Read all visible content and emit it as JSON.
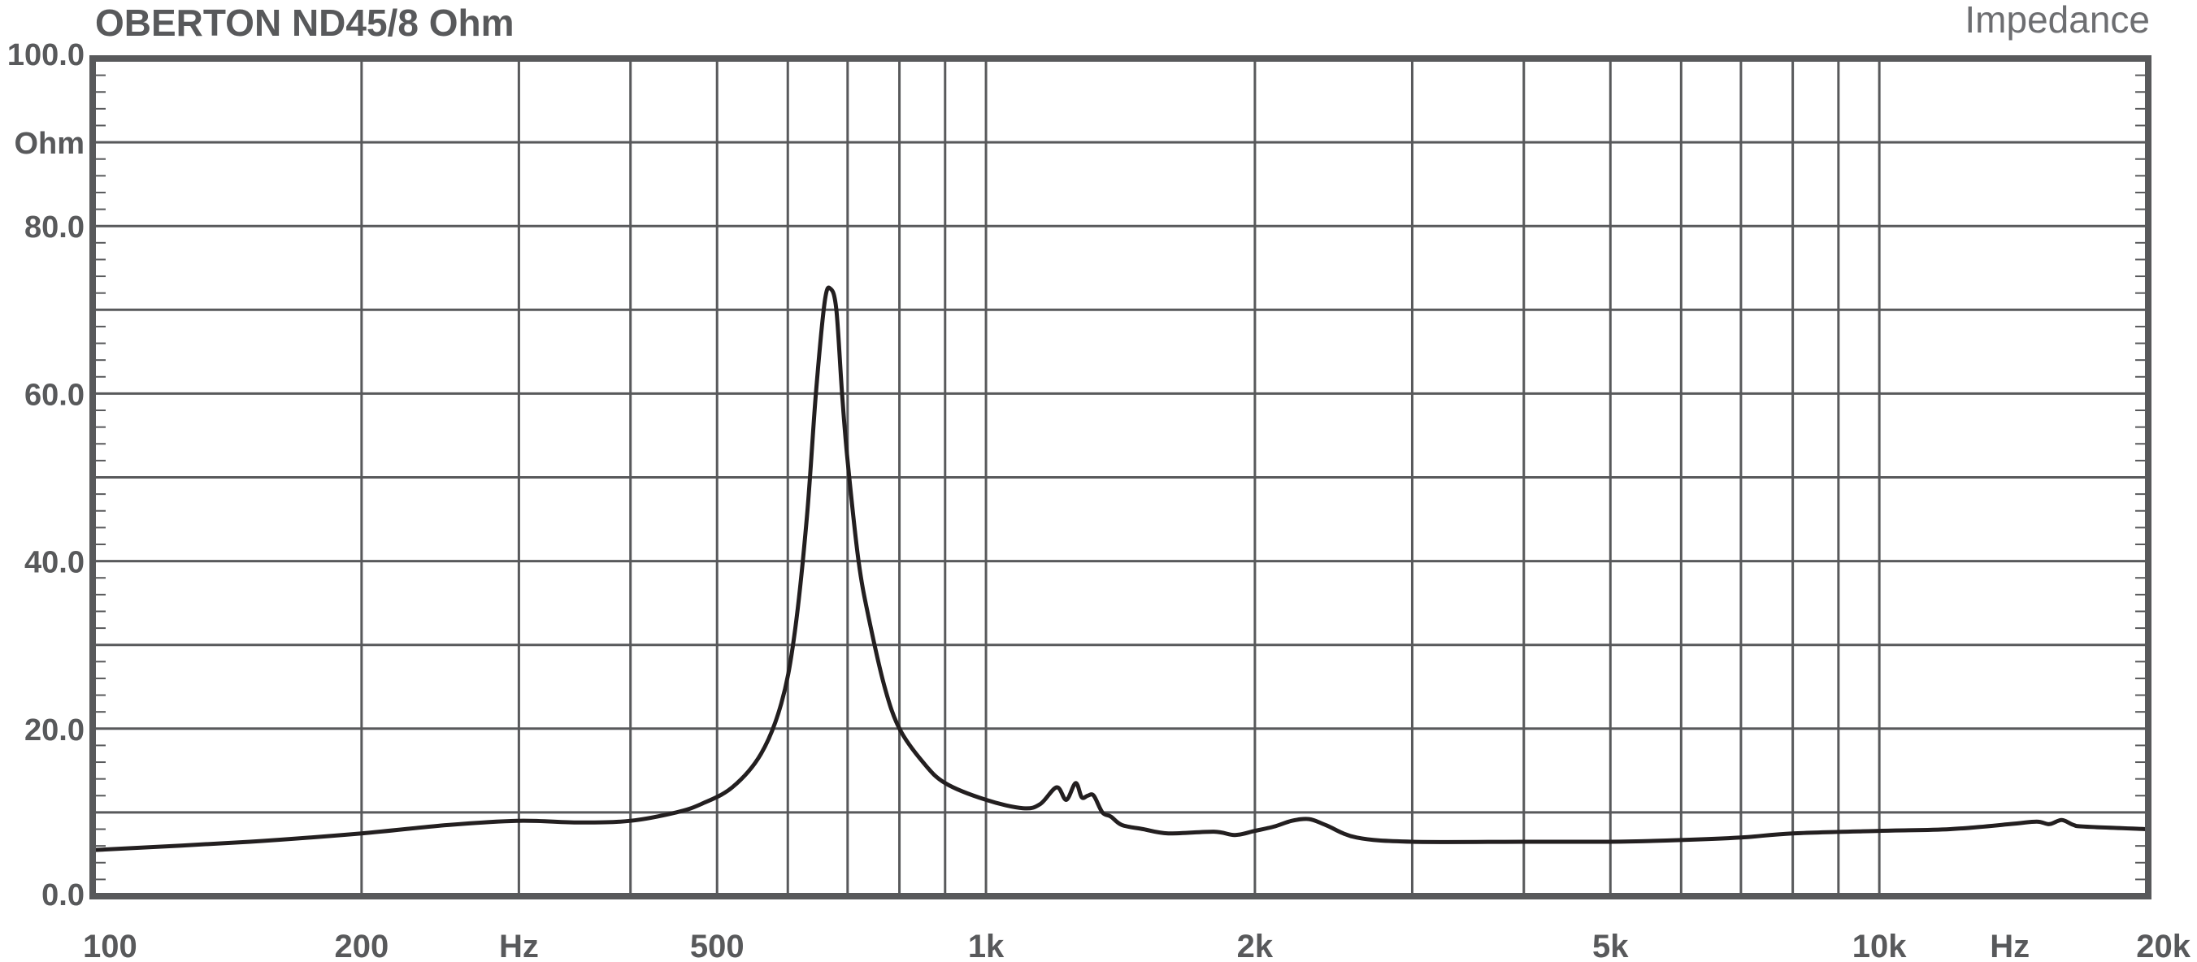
{
  "chart_data": {
    "type": "line",
    "title": "OBERTON ND45/8 Ohm",
    "subtitle": "Impedance",
    "ylabel": "Ohm",
    "xlabel": "Hz",
    "x_scale": "log",
    "xlim": [
      100,
      20000
    ],
    "ylim": [
      0,
      100
    ],
    "grid": true,
    "x_ticks": [
      {
        "value": 100,
        "label": "100"
      },
      {
        "value": 200,
        "label": "200"
      },
      {
        "value": 300,
        "label": "Hz"
      },
      {
        "value": 500,
        "label": "500"
      },
      {
        "value": 1000,
        "label": "1k"
      },
      {
        "value": 2000,
        "label": "2k"
      },
      {
        "value": 5000,
        "label": "5k"
      },
      {
        "value": 10000,
        "label": "10k"
      },
      {
        "value": 14000,
        "label": "Hz"
      },
      {
        "value": 20000,
        "label": "20k"
      }
    ],
    "y_ticks": [
      {
        "value": 0,
        "label": "0.0"
      },
      {
        "value": 20,
        "label": "20.0"
      },
      {
        "value": 40,
        "label": "40.0"
      },
      {
        "value": 60,
        "label": "60.0"
      },
      {
        "value": 80,
        "label": "80.0"
      },
      {
        "value": 90,
        "label": "Ohm"
      },
      {
        "value": 100,
        "label": "100.0"
      }
    ],
    "series": [
      {
        "color": "#231f20",
        "x": [
          100,
          150,
          200,
          250,
          300,
          350,
          400,
          450,
          480,
          520,
          560,
          590,
          610,
          630,
          645,
          660,
          670,
          680,
          690,
          700,
          720,
          740,
          770,
          800,
          850,
          900,
          1000,
          1100,
          1150,
          1200,
          1230,
          1260,
          1280,
          1300,
          1320,
          1350,
          1380,
          1420,
          1500,
          1600,
          1800,
          1900,
          2000,
          2100,
          2200,
          2300,
          2400,
          2600,
          3000,
          4000,
          5000,
          6000,
          7000,
          8000,
          10000,
          12000,
          14000,
          15000,
          15500,
          16000,
          16500,
          17000,
          20000
        ],
        "y": [
          5.5,
          6.5,
          7.5,
          8.5,
          9,
          8.8,
          9,
          10,
          11,
          13,
          17,
          23,
          31,
          45,
          60,
          71,
          72.5,
          70,
          60,
          52,
          40,
          33,
          25,
          20,
          16,
          13.5,
          11.5,
          10.5,
          11,
          13,
          11.5,
          13.5,
          11.8,
          12,
          12,
          10,
          9.5,
          8.5,
          8,
          7.5,
          7.7,
          7.3,
          7.8,
          8.3,
          9,
          9.2,
          8.5,
          7,
          6.5,
          6.5,
          6.5,
          6.7,
          7,
          7.5,
          7.8,
          8,
          8.6,
          8.9,
          8.6,
          9.1,
          8.5,
          8.3,
          8
        ]
      }
    ]
  }
}
